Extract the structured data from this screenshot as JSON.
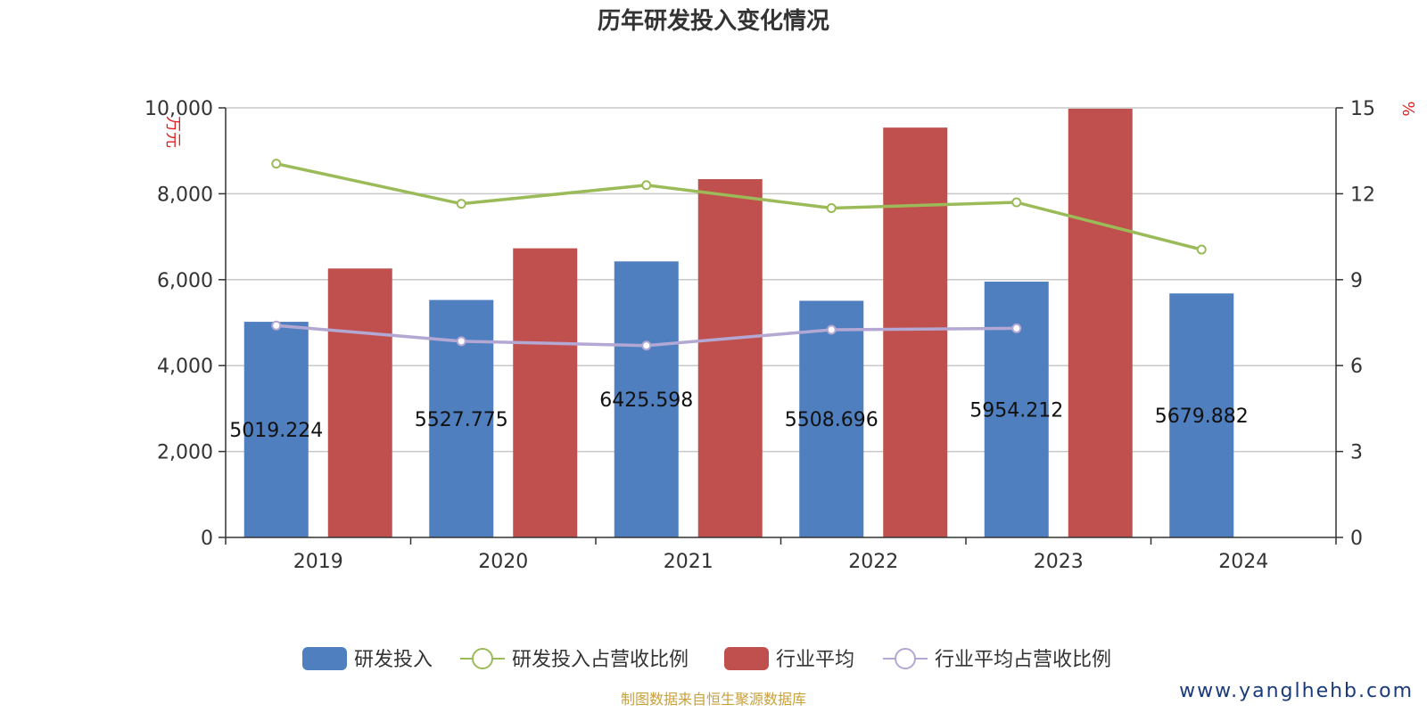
{
  "chart_data": {
    "type": "bar",
    "title": "历年研发投入变化情况",
    "categories": [
      "2019",
      "2020",
      "2021",
      "2022",
      "2023",
      "2024"
    ],
    "y_left": {
      "unit": "万元",
      "range": [
        0,
        10000
      ],
      "ticks": [
        "0",
        "2,000",
        "4,000",
        "6,000",
        "8,000",
        "10,000"
      ],
      "tick_values": [
        0,
        2000,
        4000,
        6000,
        8000,
        10000
      ]
    },
    "y_right": {
      "unit": "%",
      "range": [
        0,
        15
      ],
      "ticks": [
        "0",
        "3",
        "6",
        "9",
        "12",
        "15"
      ],
      "tick_values": [
        0,
        3,
        6,
        9,
        12,
        15
      ]
    },
    "grid": true,
    "legend_position": "bottom",
    "series": [
      {
        "name": "研发投入",
        "kind": "bar",
        "axis": "left",
        "color": "#4f7fbf",
        "values": [
          5019.224,
          5527.775,
          6425.598,
          5508.696,
          5954.212,
          5679.882
        ],
        "labels": [
          "5019.224",
          "5527.775",
          "6425.598",
          "5508.696",
          "5954.212",
          "5679.882"
        ]
      },
      {
        "name": "研发投入占营收比例",
        "kind": "line",
        "axis": "right",
        "color": "#9bbb59",
        "values": [
          13.05,
          11.65,
          12.3,
          11.5,
          11.7,
          10.05
        ]
      },
      {
        "name": "行业平均",
        "kind": "bar",
        "axis": "left",
        "color": "#c0504d",
        "values": [
          6260,
          6730,
          8340,
          9540,
          9980,
          null
        ]
      },
      {
        "name": "行业平均占营收比例",
        "kind": "line",
        "axis": "right",
        "color": "#b3a7d3",
        "values": [
          7.4,
          6.85,
          6.7,
          7.25,
          7.3,
          null
        ]
      }
    ]
  },
  "source_text": "制图数据来自恒生聚源数据库",
  "watermark_text": "www.yanglhehb.com"
}
